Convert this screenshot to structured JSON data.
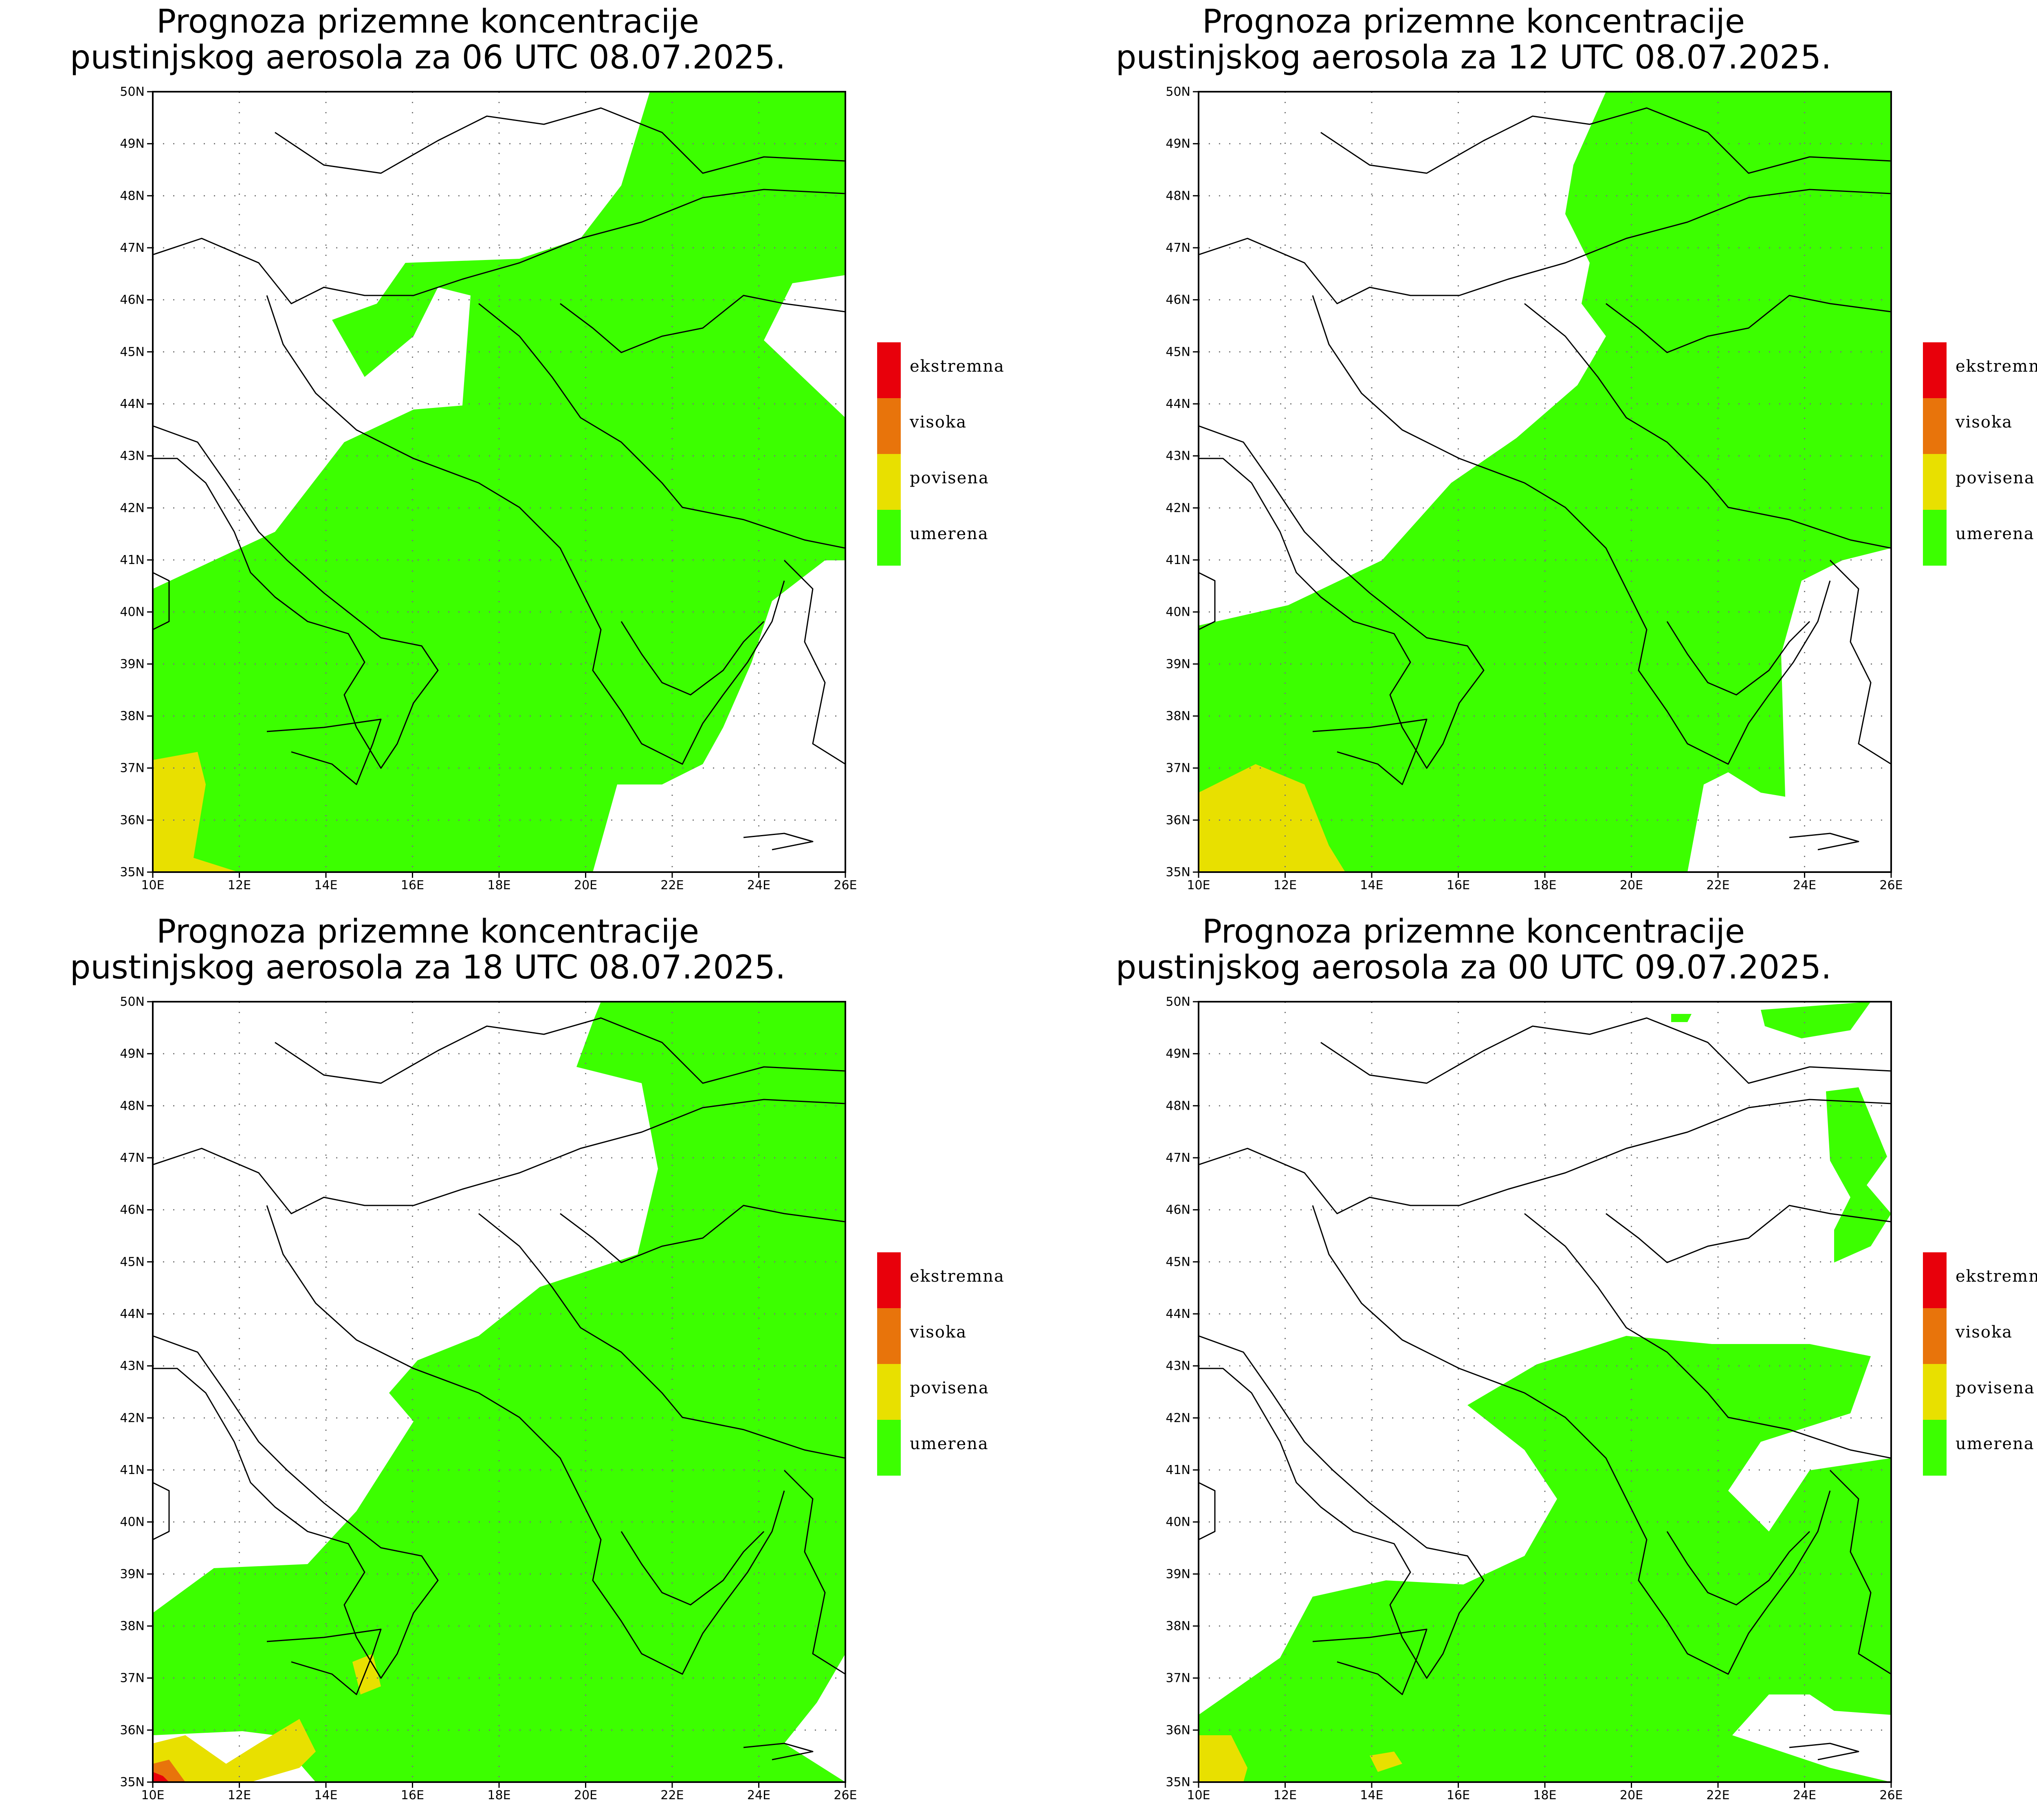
{
  "panels": [
    {
      "title_line1": "Prognoza prizemne koncentracije",
      "title_line2": "pustinjskog aerosola za 06 UTC 08.07.2025."
    },
    {
      "title_line1": "Prognoza prizemne koncentracije",
      "title_line2": "pustinjskog aerosola za 12 UTC 08.07.2025."
    },
    {
      "title_line1": "Prognoza prizemne koncentracije",
      "title_line2": "pustinjskog aerosola za 18 UTC 08.07.2025."
    },
    {
      "title_line1": "Prognoza prizemne koncentracije",
      "title_line2": "pustinjskog aerosola za 00 UTC 09.07.2025."
    }
  ],
  "axes": {
    "lon_labels": [
      "10E",
      "12E",
      "14E",
      "16E",
      "18E",
      "20E",
      "22E",
      "24E",
      "26E"
    ],
    "lat_labels": [
      "50N",
      "49N",
      "48N",
      "47N",
      "46N",
      "45N",
      "44N",
      "43N",
      "42N",
      "41N",
      "40N",
      "39N",
      "38N",
      "37N",
      "36N",
      "35N"
    ]
  },
  "legend": [
    {
      "label": "ekstremna",
      "color": "#e8000b"
    },
    {
      "label": "visoka",
      "color": "#e8740b"
    },
    {
      "label": "povisena",
      "color": "#e8e000"
    },
    {
      "label": "umerena",
      "color": "#3cff00"
    }
  ]
}
